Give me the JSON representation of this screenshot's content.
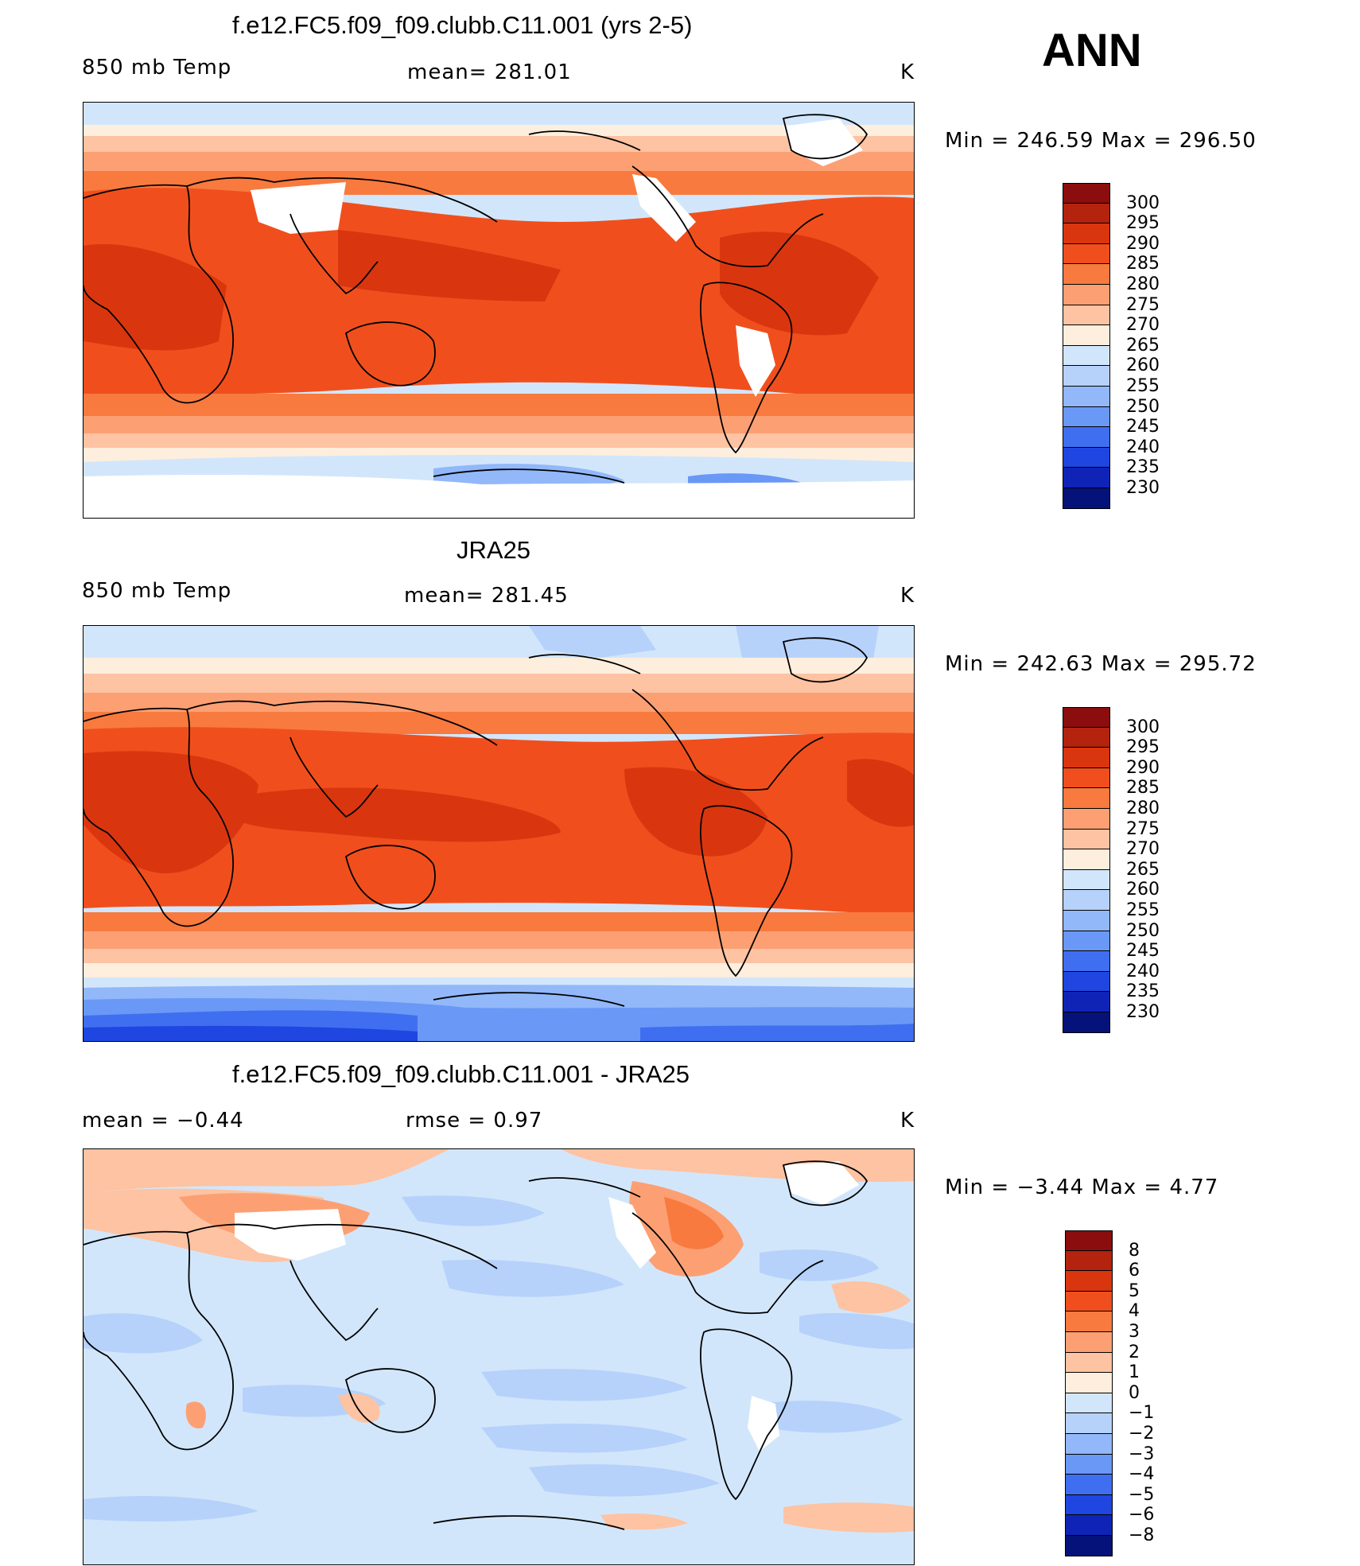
{
  "season": "ANN",
  "panels": [
    {
      "title": "f.e12.FC5.f09_f09.clubb.C11.001 (yrs 2-5)",
      "left_label": "850 mb Temp",
      "center_label": "mean=  281.01",
      "right_label": "K",
      "minmax": "Min  =  246.59  Max  =  296.50",
      "levels": [
        "300",
        "295",
        "290",
        "285",
        "280",
        "275",
        "270",
        "265",
        "260",
        "255",
        "250",
        "245",
        "240",
        "235",
        "230"
      ],
      "colors": [
        "#8b0d0d",
        "#b3230e",
        "#d9360f",
        "#f04f1d",
        "#f87a3f",
        "#fca074",
        "#fdc3a2",
        "#feeedd",
        "#d2e6fb",
        "#b6d2fb",
        "#92b8fa",
        "#6a98f6",
        "#3f6ff0",
        "#1f46e0",
        "#0f24b6",
        "#05127a"
      ]
    },
    {
      "title": "JRA25",
      "left_label": "850 mb Temp",
      "center_label": "mean=  281.45",
      "right_label": "K",
      "minmax": "Min  =  242.63  Max  =  295.72",
      "levels": [
        "300",
        "295",
        "290",
        "285",
        "280",
        "275",
        "270",
        "265",
        "260",
        "255",
        "250",
        "245",
        "240",
        "235",
        "230"
      ],
      "colors": [
        "#8b0d0d",
        "#b3230e",
        "#d9360f",
        "#f04f1d",
        "#f87a3f",
        "#fca074",
        "#fdc3a2",
        "#feeedd",
        "#d2e6fb",
        "#b6d2fb",
        "#92b8fa",
        "#6a98f6",
        "#3f6ff0",
        "#1f46e0",
        "#0f24b6",
        "#05127a"
      ]
    },
    {
      "title": "f.e12.FC5.f09_f09.clubb.C11.001 - JRA25",
      "left_label": "mean  =    −0.44",
      "center_label": "rmse  =     0.97",
      "right_label": "K",
      "minmax": "Min  =    −3.44  Max  =      4.77",
      "levels": [
        "8",
        "6",
        "5",
        "4",
        "3",
        "2",
        "1",
        "0",
        "−1",
        "−2",
        "−3",
        "−4",
        "−5",
        "−6",
        "−8"
      ],
      "colors": [
        "#8b0d0d",
        "#b3230e",
        "#d9360f",
        "#f04f1d",
        "#f87a3f",
        "#fca074",
        "#fdc3a2",
        "#feeedd",
        "#d2e6fb",
        "#b6d2fb",
        "#92b8fa",
        "#6a98f6",
        "#3f6ff0",
        "#1f46e0",
        "#0f24b6",
        "#05127a"
      ]
    }
  ]
}
